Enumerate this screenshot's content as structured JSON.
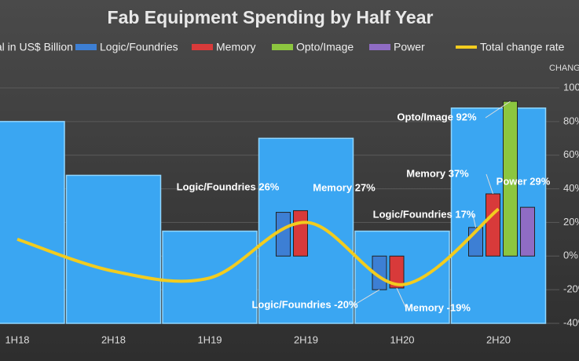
{
  "chart_data": {
    "type": "bar",
    "title": "Fab Equipment Spending by Half Year",
    "y2_label": "CHANG",
    "categories": [
      "1H18",
      "2H18",
      "1H19",
      "2H19",
      "1H20",
      "2H20"
    ],
    "ylim": [
      0,
      35
    ],
    "y2lim": [
      -40,
      100
    ],
    "y2ticks": [
      {
        "value": -40,
        "label": "-40%"
      },
      {
        "value": -20,
        "label": "-20%"
      },
      {
        "value": 0,
        "label": "0%"
      },
      {
        "value": 20,
        "label": "20%"
      },
      {
        "value": 40,
        "label": "40%"
      },
      {
        "value": 60,
        "label": "60%"
      },
      {
        "value": 80,
        "label": "80%"
      },
      {
        "value": 100,
        "label": "100"
      }
    ],
    "grid": true,
    "legend": "top",
    "series": [
      {
        "name": "tal in US$ Billion",
        "color": "#3aa6f2",
        "values": [
          30,
          22,
          13.7,
          27.5,
          13.7,
          32
        ]
      },
      {
        "name": "Logic/Foundries",
        "color": "#3d7fd4",
        "axis": "y2",
        "values": [
          null,
          null,
          null,
          26,
          -20,
          17
        ],
        "value_labels": [
          null,
          null,
          null,
          "Logic/Foundries 26%",
          "Logic/Foundries -20%",
          "Logic/Foundries 17%"
        ]
      },
      {
        "name": "Memory",
        "color": "#d83a3a",
        "axis": "y2",
        "values": [
          null,
          null,
          null,
          27,
          -19,
          37
        ],
        "value_labels": [
          null,
          null,
          null,
          "Memory 27%",
          "Memory -19%",
          "Memory 37%"
        ]
      },
      {
        "name": "Opto/Image",
        "color": "#8cc63f",
        "axis": "y2",
        "values": [
          null,
          null,
          null,
          null,
          null,
          92
        ],
        "value_labels": [
          null,
          null,
          null,
          null,
          null,
          "Opto/Image 92%"
        ]
      },
      {
        "name": "Power",
        "color": "#8f6cc4",
        "axis": "y2",
        "values": [
          null,
          null,
          null,
          null,
          null,
          29
        ],
        "value_labels": [
          null,
          null,
          null,
          null,
          null,
          "Power 29%"
        ]
      },
      {
        "name": "Total change rate",
        "type": "line",
        "color": "#f2cc1f",
        "axis": "y2",
        "values": [
          10,
          -9,
          -13,
          20,
          -17,
          28
        ]
      }
    ]
  }
}
